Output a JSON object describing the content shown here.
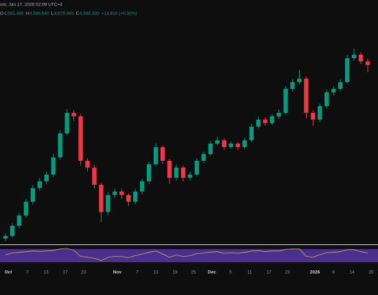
{
  "header": {
    "title": "om, Jan 17, 2026 02:09 UTC+4",
    "ohlc": [
      {
        "key": "O",
        "value": "4,581.465"
      },
      {
        "key": "H",
        "value": "4,586.640"
      },
      {
        "key": "L",
        "value": "4,579.965"
      },
      {
        "key": "C",
        "value": "4,586.330"
      }
    ],
    "change": "+14.810 (+0.32%)"
  },
  "chart_data": {
    "type": "candlestick",
    "up_color": "#089981",
    "down_color": "#f23645",
    "ylim": [
      3800,
      4850
    ],
    "open": [
      3825,
      3836,
      3880,
      3924,
      3983,
      4042,
      4071,
      4100,
      4174,
      4277,
      4365,
      4350,
      4159,
      4130,
      4056,
      3939,
      4012,
      4027,
      4012,
      3983,
      4027,
      4071,
      4144,
      4218,
      4159,
      4086,
      4130,
      4086,
      4100,
      4159,
      4188,
      4233,
      4247,
      4218,
      4233,
      4218,
      4247,
      4306,
      4336,
      4321,
      4350,
      4365,
      4468,
      4497,
      4512,
      4365,
      4336,
      4394,
      4453,
      4468,
      4497,
      4600,
      4615,
      4586
    ],
    "high": [
      3848,
      3892,
      3935,
      3995,
      4055,
      4085,
      4112,
      4188,
      4290,
      4381,
      4378,
      4360,
      4170,
      4142,
      4065,
      4025,
      4040,
      4038,
      4020,
      4038,
      4082,
      4155,
      4235,
      4225,
      4168,
      4142,
      4138,
      4112,
      4170,
      4198,
      4245,
      4262,
      4255,
      4242,
      4240,
      4258,
      4318,
      4348,
      4345,
      4360,
      4378,
      4480,
      4510,
      4550,
      4520,
      4375,
      4405,
      4465,
      4480,
      4510,
      4615,
      4640,
      4625,
      4598
    ],
    "low": [
      3815,
      3828,
      3870,
      3915,
      3970,
      4030,
      4058,
      4090,
      4165,
      4268,
      4330,
      4140,
      4112,
      4040,
      3895,
      3925,
      3998,
      3995,
      3965,
      3972,
      4015,
      4060,
      4135,
      4145,
      4060,
      4075,
      4070,
      4075,
      4092,
      4150,
      4180,
      4225,
      4205,
      4210,
      4205,
      4210,
      4240,
      4298,
      4310,
      4312,
      4340,
      4358,
      4458,
      4488,
      4340,
      4310,
      4325,
      4385,
      4440,
      4458,
      4490,
      4590,
      4575,
      4540
    ],
    "close": [
      3836,
      3880,
      3924,
      3983,
      4042,
      4071,
      4100,
      4174,
      4277,
      4365,
      4350,
      4159,
      4130,
      4056,
      3939,
      4012,
      4027,
      4012,
      3983,
      4027,
      4071,
      4144,
      4218,
      4159,
      4086,
      4130,
      4086,
      4100,
      4159,
      4188,
      4233,
      4247,
      4218,
      4233,
      4218,
      4247,
      4306,
      4336,
      4321,
      4350,
      4365,
      4468,
      4497,
      4512,
      4365,
      4336,
      4394,
      4453,
      4468,
      4497,
      4600,
      4615,
      4586,
      4571
    ],
    "rsi": {
      "color": "#d4b833",
      "band_color": "#4b2f8f",
      "ylim": [
        20,
        80
      ],
      "band": [
        30,
        70
      ],
      "values": [
        52,
        58,
        60,
        62,
        64,
        63,
        64,
        66,
        70,
        72,
        66,
        48,
        45,
        42,
        35,
        45,
        48,
        47,
        44,
        50,
        55,
        60,
        64,
        55,
        45,
        52,
        47,
        50,
        56,
        58,
        61,
        62,
        57,
        59,
        57,
        60,
        64,
        65,
        62,
        64,
        64,
        69,
        70,
        70,
        48,
        45,
        53,
        59,
        60,
        62,
        68,
        68,
        62,
        58
      ]
    },
    "x_labels": [
      "Oct",
      "7",
      "13",
      "17",
      "23",
      "Nov",
      "7",
      "13",
      "19",
      "25",
      "Dec",
      "5",
      "11",
      "17",
      "23",
      "2026",
      "8",
      "14",
      "20"
    ]
  }
}
